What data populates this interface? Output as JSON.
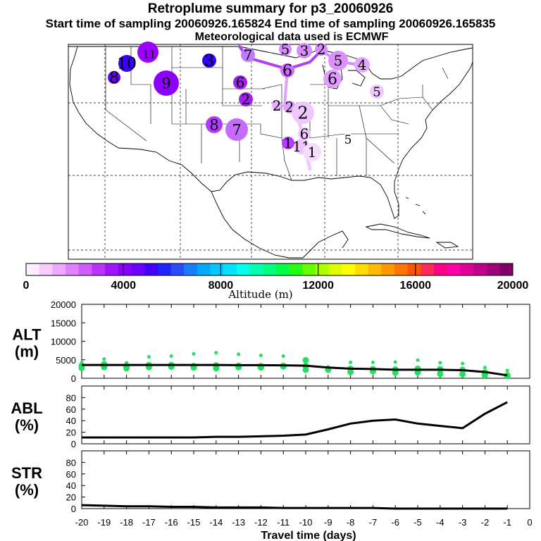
{
  "header": {
    "title": "Retroplume summary for p3_20060926",
    "subtitle": "Start time of sampling 20060926.165824     End time of sampling 20060926.165835",
    "met": "Meteorological data used is ECMWF"
  },
  "map": {
    "plume_labels": [
      {
        "text": "1",
        "color": "#9b00ff"
      },
      {
        "text": "11",
        "color": "#9b00ff"
      },
      {
        "text": "10",
        "color": "#3a00ff"
      },
      {
        "text": "8",
        "color": "#6600ff"
      },
      {
        "text": "9",
        "color": "#8c00ff"
      },
      {
        "text": "3",
        "color": "#3300ff"
      },
      {
        "text": "7",
        "color": "#c07bff"
      },
      {
        "text": "6",
        "color": "#a020f0"
      },
      {
        "text": "2",
        "color": "#a020f0"
      },
      {
        "text": "8",
        "color": "#b33cff"
      },
      {
        "text": "7",
        "color": "#c66bff"
      },
      {
        "text": "5",
        "color": "#d98cff"
      },
      {
        "text": "3",
        "color": "#d98cff"
      },
      {
        "text": "2",
        "color": "#d98cff"
      },
      {
        "text": "6",
        "color": "#cf6cff"
      },
      {
        "text": "5",
        "color": "#dc90ff"
      },
      {
        "text": "4",
        "color": "#e2a6ff"
      },
      {
        "text": "6",
        "color": "#e09cff"
      },
      {
        "text": "5",
        "color": "#f0c8ff"
      },
      {
        "text": "2",
        "color": "#e8b0ff"
      },
      {
        "text": "2",
        "color": "#e0a0ff"
      },
      {
        "text": "2",
        "color": "#f0c8ff"
      },
      {
        "text": "6",
        "color": "#f0c8ff"
      },
      {
        "text": "1",
        "color": "#b33cff"
      },
      {
        "text": "11",
        "color": "#efc4ff"
      },
      {
        "text": "1",
        "color": "#f5dcff"
      },
      {
        "text": "5",
        "color": "#ffffff"
      }
    ]
  },
  "colorbar": {
    "ticks": [
      "0",
      "4000",
      "8000",
      "12000",
      "16000",
      "20000"
    ],
    "label": "Altitude (m)",
    "colors": [
      "#ffeeff",
      "#f8ccff",
      "#efa8ff",
      "#e280ff",
      "#d05cff",
      "#bb33ff",
      "#a014ff",
      "#8a00ff",
      "#6a00ff",
      "#4400ff",
      "#2222ff",
      "#2a4cff",
      "#1a7cff",
      "#00a8ff",
      "#00c8ff",
      "#00e0ff",
      "#00ffea",
      "#00ffb0",
      "#00ff7c",
      "#00ff48",
      "#22ff10",
      "#66ff00",
      "#aaff00",
      "#ddff00",
      "#ffff00",
      "#ffdd00",
      "#ffbb00",
      "#ff9900",
      "#ff7700",
      "#ff5500",
      "#ff2a55",
      "#ff0088",
      "#ff00aa",
      "#e0009a",
      "#c0008a",
      "#a0007a",
      "#800066"
    ]
  },
  "chart_data": [
    {
      "type": "line",
      "panel": "alt",
      "ylabel": "ALT\n(m)",
      "ylabel_lines": [
        "ALT",
        "(m)"
      ],
      "ylim": [
        0,
        20000
      ],
      "yticks": [
        "0",
        "5000",
        "10000",
        "15000",
        "20000"
      ],
      "x": [
        -20,
        -19,
        -18,
        -17,
        -16,
        -15,
        -14,
        -13,
        -12,
        -11,
        -10,
        -9,
        -8,
        -7,
        -6,
        -5,
        -4,
        -3,
        -2,
        -1
      ],
      "values": [
        3600,
        3600,
        3600,
        3600,
        3600,
        3600,
        3600,
        3550,
        3550,
        3500,
        3400,
        2900,
        2600,
        2500,
        2300,
        2300,
        2300,
        2200,
        1700,
        800
      ],
      "scatter_points": [
        [
          -20,
          3400
        ],
        [
          -20,
          4200
        ],
        [
          -20,
          2800
        ],
        [
          -19,
          3800
        ],
        [
          -19,
          5200
        ],
        [
          -19,
          3000
        ],
        [
          -18,
          3300
        ],
        [
          -18,
          4200
        ],
        [
          -18,
          2700
        ],
        [
          -17,
          3600
        ],
        [
          -17,
          5800
        ],
        [
          -17,
          3000
        ],
        [
          -16,
          3600
        ],
        [
          -16,
          6000
        ],
        [
          -16,
          3100
        ],
        [
          -15,
          3300
        ],
        [
          -15,
          6600
        ],
        [
          -15,
          2900
        ],
        [
          -14,
          3500
        ],
        [
          -14,
          6900
        ],
        [
          -14,
          2700
        ],
        [
          -13,
          3400
        ],
        [
          -13,
          6500
        ],
        [
          -13,
          3000
        ],
        [
          -12,
          3300
        ],
        [
          -12,
          6200
        ],
        [
          -12,
          2900
        ],
        [
          -11,
          3400
        ],
        [
          -11,
          6000
        ],
        [
          -11,
          3200
        ],
        [
          -10,
          3300
        ],
        [
          -10,
          4500
        ],
        [
          -10,
          2300
        ],
        [
          -10,
          4900
        ],
        [
          -9,
          3100
        ],
        [
          -9,
          2300
        ],
        [
          -8,
          2600
        ],
        [
          -8,
          4300
        ],
        [
          -8,
          1700
        ],
        [
          -7,
          2500
        ],
        [
          -7,
          4300
        ],
        [
          -7,
          1900
        ],
        [
          -6,
          2400
        ],
        [
          -6,
          4400
        ],
        [
          -6,
          1500
        ],
        [
          -5,
          2600
        ],
        [
          -5,
          4900
        ],
        [
          -5,
          1600
        ],
        [
          -4,
          2500
        ],
        [
          -4,
          4200
        ],
        [
          -4,
          1200
        ],
        [
          -3,
          2300
        ],
        [
          -3,
          4000
        ],
        [
          -3,
          1100
        ],
        [
          -2,
          1600
        ],
        [
          -2,
          2900
        ],
        [
          -2,
          800
        ],
        [
          -1,
          800
        ],
        [
          -1,
          2100
        ],
        [
          -1,
          600
        ]
      ]
    },
    {
      "type": "line",
      "panel": "abl",
      "ylabel_lines": [
        "ABL",
        "(%)"
      ],
      "ylim": [
        0,
        100
      ],
      "yticks": [
        "0",
        "20",
        "40",
        "60",
        "80"
      ],
      "x": [
        -20,
        -19,
        -18,
        -17,
        -16,
        -15,
        -14,
        -13,
        -12,
        -11,
        -10,
        -9,
        -8,
        -7,
        -6,
        -5,
        -4,
        -3,
        -2,
        -1
      ],
      "values": [
        11,
        11,
        11,
        11,
        11,
        11,
        12,
        12,
        13,
        14,
        16,
        25,
        35,
        40,
        42,
        35,
        31,
        27,
        52,
        72
      ]
    },
    {
      "type": "line",
      "panel": "str",
      "ylabel_lines": [
        "STR",
        "(%)"
      ],
      "ylim": [
        0,
        100
      ],
      "yticks": [
        "0",
        "20",
        "40",
        "60",
        "80"
      ],
      "x": [
        -20,
        -19,
        -18,
        -17,
        -16,
        -15,
        -14,
        -13,
        -12,
        -11,
        -10,
        -9,
        -8,
        -7,
        -6,
        -5,
        -4,
        -3,
        -2,
        -1
      ],
      "values": [
        6,
        5,
        4,
        4,
        3,
        3,
        2,
        2,
        2,
        1,
        1,
        1,
        1,
        1,
        0,
        0,
        0,
        0,
        0,
        0
      ],
      "xlabel": "Travel time (days)",
      "xticks": [
        "-20",
        "-19",
        "-18",
        "-17",
        "-16",
        "-15",
        "-14",
        "-13",
        "-12",
        "-11",
        "-10",
        "-9",
        "-8",
        "-7",
        "-6",
        "-5",
        "-4",
        "-3",
        "-2",
        "-1",
        "0"
      ]
    }
  ]
}
